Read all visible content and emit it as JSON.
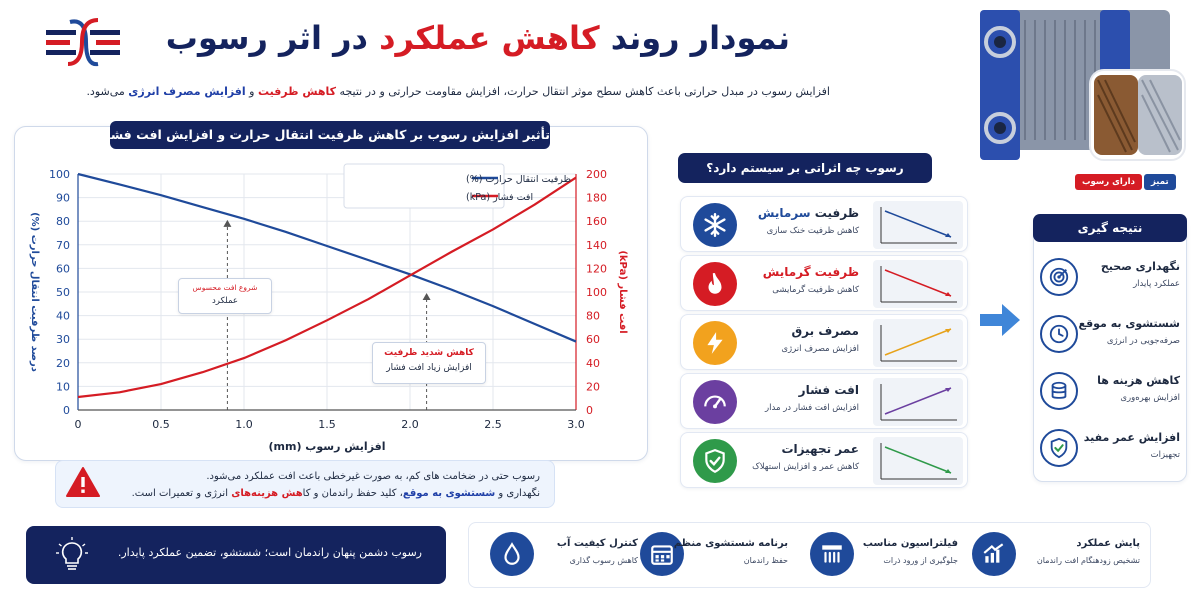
{
  "header": {
    "title_part1": "نمودار روند ",
    "title_part2": "کاهش عملکرد",
    "title_part3": " در اثر رسوب",
    "intro_part1": "افزایش رسوب در مبدل حرارتی باعث کاهش سطح موثر انتقال حرارت، افزایش مقاومت حرارتی و در نتیجه ",
    "intro_red": "کاهش ظرفیت",
    "intro_and": " و ",
    "intro_blue": "افزایش مصرف انرژی",
    "intro_end": " می‌شود."
  },
  "image_labels": {
    "fouled": "دارای رسوب",
    "clean": "تمیز"
  },
  "chart_box_title": "تأثیر افزایش رسوب بر کاهش ظرفیت انتقال حرارت و افزایش افت فشار",
  "chart_data": {
    "type": "line",
    "title": "تأثیر افزایش رسوب بر کاهش ظرفیت انتقال حرارت و افزایش افت فشار",
    "xlabel": "افزایش رسوب (mm)",
    "ylabel_left": "درصد ظرفیت انتقال حرارت (%)",
    "ylabel_right": "افت فشار (kPa)",
    "xlim": [
      0,
      3.0
    ],
    "ylim_left": [
      0,
      100
    ],
    "ylim_right": [
      0,
      200
    ],
    "x_ticks": [
      "0",
      "0.5",
      "1.0",
      "1.5",
      "2.0",
      "2.5",
      "3.0"
    ],
    "y_left_ticks": [
      "0",
      "10",
      "20",
      "30",
      "40",
      "50",
      "60",
      "70",
      "80",
      "90",
      "100"
    ],
    "y_right_ticks": [
      "0",
      "20",
      "40",
      "60",
      "80",
      "100",
      "120",
      "140",
      "160",
      "180",
      "200"
    ],
    "grid": true,
    "legend_position": "top-center",
    "series": [
      {
        "name": "ظرفیت انتقال حرارت (%)",
        "axis": "left",
        "color": "#1f4a9a",
        "x": [
          0,
          0.25,
          0.5,
          0.75,
          1.0,
          1.25,
          1.5,
          1.75,
          2.0,
          2.25,
          2.5,
          2.75,
          3.0
        ],
        "y": [
          100,
          95.6,
          91,
          86,
          81,
          75.5,
          69.5,
          63.5,
          57.5,
          51,
          44,
          36.5,
          29
        ]
      },
      {
        "name": "افت فشار (kPa)",
        "axis": "right",
        "color": "#d51c24",
        "x": [
          0,
          0.25,
          0.5,
          0.75,
          1.0,
          1.25,
          1.5,
          1.75,
          2.0,
          2.25,
          2.5,
          2.75,
          3.0
        ],
        "y": [
          11,
          15,
          22,
          32,
          44,
          59,
          76,
          94,
          114,
          134,
          153,
          174,
          197
        ]
      }
    ],
    "annotations": [
      {
        "x": 0.9,
        "y": 81,
        "line1": "شروع افت محسوس",
        "line2": "عملکرد"
      },
      {
        "x": 2.1,
        "y": 50,
        "line1": "کاهش شدید ظرفیت",
        "line2": "افزایش زیاد افت فشار"
      }
    ]
  },
  "warning": {
    "line1": "رسوب حتی در ضخامت های کم، به صورت غیرخطی باعث افت عملکرد می‌شود.",
    "line2_a": "نگهداری و ",
    "line2_b": "شستشوی به موقع",
    "line2_c": "، کلید حفظ راندمان و کا",
    "line2_d": "هش هزینه‌های",
    "line2_e": " انرژی و تعمیرات است."
  },
  "effects": {
    "title": "رسوب چه اثراتی بر سیستم دارد؟",
    "items": [
      {
        "title_a": "ظرفیت ",
        "title_b": "سرمایش",
        "subtitle": "کاهش ظرفیت خنک سازی",
        "icon": "snowflake-icon",
        "color": "#1f4a9a",
        "title_color": "#1d2940",
        "accent_color": "#1f4a9a",
        "trend": "down",
        "line_color": "#1f4a9a"
      },
      {
        "title_a": "ظرفیت ",
        "title_b": "گرمایش",
        "subtitle": "کاهش ظرفیت گرمایشی",
        "icon": "flame-icon",
        "color": "#d51c24",
        "title_color": "#d51c24",
        "accent_color": "#d51c24",
        "trend": "down",
        "line_color": "#d51c24"
      },
      {
        "title_a": "مصرف برق",
        "title_b": "",
        "subtitle": "افزایش مصرف انرژی",
        "icon": "lightning-icon",
        "color": "#f2a21e",
        "title_color": "#1d2940",
        "accent_color": "#1d2940",
        "trend": "up",
        "line_color": "#e7a21a"
      },
      {
        "title_a": "افت فشار",
        "title_b": "",
        "subtitle": "افزایش افت فشار در مدار",
        "icon": "gauge-icon",
        "color": "#6b3fa0",
        "title_color": "#1d2940",
        "accent_color": "#1d2940",
        "trend": "up",
        "line_color": "#6b3fa0"
      },
      {
        "title_a": "عمر تجهیزات",
        "title_b": "",
        "subtitle": "کاهش عمر و افزایش استهلاک",
        "icon": "shield-check-icon",
        "color": "#2f9a4a",
        "title_color": "#1d2940",
        "accent_color": "#1d2940",
        "trend": "down",
        "line_color": "#2f9a4a"
      }
    ]
  },
  "conclusion": {
    "title": "نتیجه گیری",
    "items": [
      {
        "title": "نگهداری صحیح",
        "subtitle": "عملکرد پایدار",
        "icon": "target-icon"
      },
      {
        "title": "شستشوی به موقع",
        "subtitle": "صرفه‌جویی در انرژی",
        "icon": "clock-icon"
      },
      {
        "title": "کاهش هزینه ها",
        "subtitle": "افزایش بهره‌وری",
        "icon": "coins-icon"
      },
      {
        "title": "افزایش عمر مفید",
        "subtitle": "تجهیزات",
        "icon": "shield-check-icon"
      }
    ]
  },
  "quote": "رسوب دشمن پنهان راندمان است؛ شستشو، تضمین عملکرد پایدار.",
  "bottom_items": [
    {
      "title": "پایش عملکرد",
      "subtitle": "تشخیص زودهنگام افت راندمان",
      "icon": "chart-up-icon"
    },
    {
      "title": "فیلتراسیون مناسب",
      "subtitle": "جلوگیری از ورود ذرات",
      "icon": "filter-icon"
    },
    {
      "title": "برنامه شستشوی منظم",
      "subtitle": "حفظ راندمان",
      "icon": "calendar-icon"
    },
    {
      "title": "کنترل کیفیت آب",
      "subtitle": "کاهش رسوب گذاری",
      "icon": "droplet-icon"
    }
  ]
}
